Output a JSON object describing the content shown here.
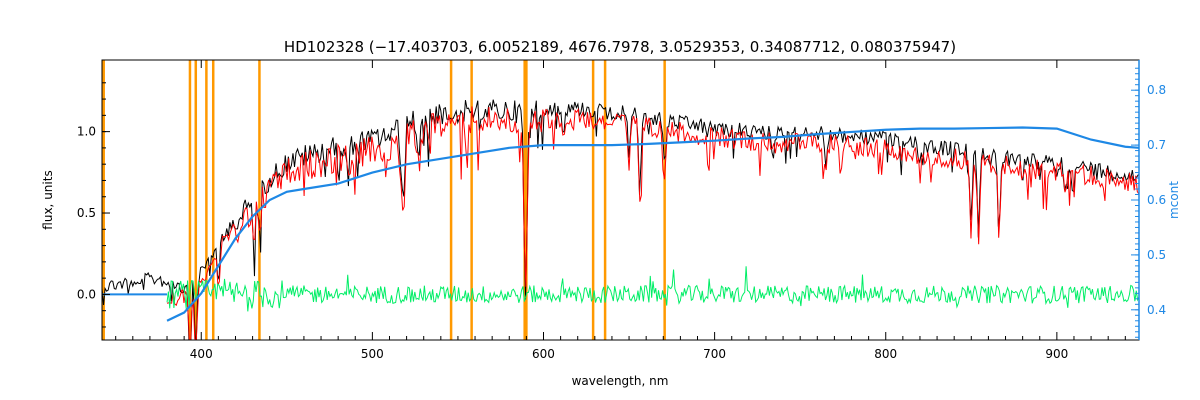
{
  "chart_data": {
    "type": "line",
    "title": "HD102328   (−17.403703, 6.0052189, 4676.7978, 3.0529353, 0.34087712, 0.080375947)",
    "xlabel": "wavelength, nm",
    "ylabel": "flux, units",
    "y2label": "mcont",
    "xlim": [
      342,
      948
    ],
    "ylim": [
      -0.28,
      1.44
    ],
    "y2lim": [
      0.345,
      0.855
    ],
    "x_ticks": [
      400,
      500,
      600,
      700,
      800,
      900
    ],
    "y_ticks": [
      0.0,
      0.5,
      1.0
    ],
    "y_tick_labels": [
      "0.0",
      "0.5",
      "1.0"
    ],
    "y2_ticks": [
      0.4,
      0.5,
      0.6,
      0.7,
      0.8
    ],
    "y2_tick_labels": [
      "0.4",
      "0.5",
      "0.6",
      "0.7",
      "0.8"
    ],
    "grid": false,
    "colors": {
      "observed": "#000000",
      "model": "#ff0000",
      "residual": "#00ee66",
      "continuum": "#1e88e5",
      "markers": "#ff9900",
      "axis_right": "#1e88e5"
    },
    "vertical_markers_nm": [
      343,
      393.4,
      396.8,
      403,
      407,
      434,
      546,
      558,
      589,
      590,
      629,
      636,
      670.8
    ],
    "series": [
      {
        "role": "observed",
        "x": [
          342,
          360,
          375,
          382,
          390,
          400,
          410,
          420,
          430,
          440,
          450,
          460,
          470,
          480,
          490,
          500,
          510,
          520,
          530,
          540,
          550,
          560,
          570,
          580,
          590,
          600,
          620,
          640,
          660,
          680,
          700,
          720,
          740,
          760,
          780,
          800,
          820,
          840,
          860,
          880,
          900,
          920,
          948
        ],
        "y": [
          0.09,
          0.12,
          0.14,
          0.1,
          0.08,
          0.18,
          0.35,
          0.5,
          0.65,
          0.78,
          0.88,
          0.92,
          0.95,
          0.98,
          1.0,
          1.02,
          1.05,
          1.12,
          1.15,
          1.17,
          1.19,
          1.2,
          1.2,
          1.2,
          1.18,
          1.2,
          1.19,
          1.17,
          1.14,
          1.1,
          1.07,
          1.05,
          1.03,
          1.04,
          1.02,
          1.0,
          0.97,
          0.94,
          0.9,
          0.87,
          0.85,
          0.82,
          0.77
        ]
      },
      {
        "role": "model",
        "x": [
          380,
          390,
          400,
          410,
          420,
          430,
          440,
          450,
          460,
          470,
          480,
          490,
          500,
          510,
          520,
          530,
          540,
          550,
          560,
          570,
          580,
          590,
          600,
          620,
          640,
          660,
          680,
          700,
          720,
          740,
          760,
          780,
          800,
          820,
          840,
          860,
          880,
          900,
          920,
          948
        ],
        "y": [
          0.03,
          0.05,
          0.15,
          0.32,
          0.48,
          0.62,
          0.74,
          0.84,
          0.88,
          0.9,
          0.93,
          0.95,
          0.97,
          1.0,
          1.06,
          1.1,
          1.13,
          1.15,
          1.16,
          1.16,
          1.16,
          1.14,
          1.15,
          1.14,
          1.12,
          1.1,
          1.06,
          1.03,
          1.01,
          0.99,
          1.0,
          0.98,
          0.96,
          0.93,
          0.9,
          0.87,
          0.84,
          0.82,
          0.79,
          0.74
        ]
      },
      {
        "role": "residual",
        "x": [
          380,
          948
        ],
        "y": [
          0.0,
          0.0
        ]
      },
      {
        "role": "continuum",
        "axis": "right",
        "x": [
          380,
          390,
          400,
          410,
          420,
          430,
          440,
          450,
          460,
          480,
          500,
          520,
          540,
          560,
          580,
          600,
          620,
          640,
          660,
          680,
          700,
          720,
          740,
          760,
          780,
          800,
          820,
          840,
          860,
          880,
          900,
          920,
          940,
          948
        ],
        "y": [
          0.38,
          0.395,
          0.43,
          0.48,
          0.53,
          0.57,
          0.6,
          0.615,
          0.62,
          0.63,
          0.65,
          0.665,
          0.675,
          0.685,
          0.695,
          0.7,
          0.7,
          0.7,
          0.702,
          0.705,
          0.708,
          0.712,
          0.715,
          0.72,
          0.724,
          0.728,
          0.73,
          0.73,
          0.731,
          0.732,
          0.73,
          0.71,
          0.697,
          0.695
        ]
      }
    ]
  }
}
